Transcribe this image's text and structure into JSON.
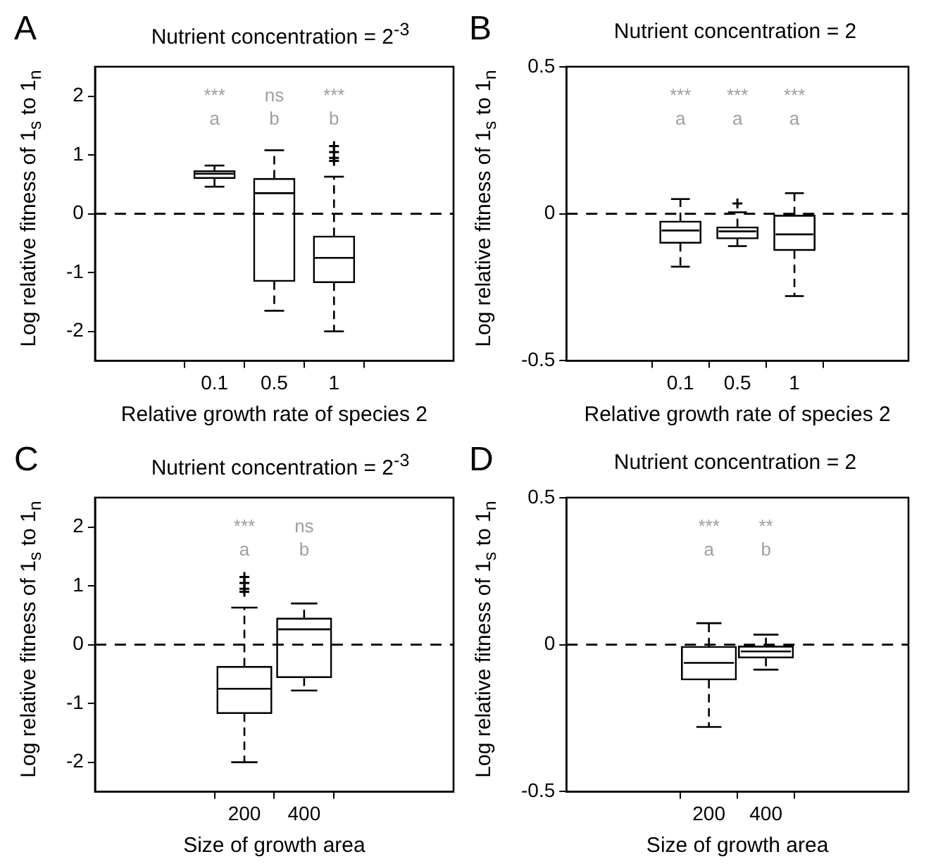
{
  "chart_data": [
    {
      "type": "box",
      "title": "Nutrient concentration = 2$^{-3}$",
      "xlabel": "Relative growth rate of species 2",
      "ylabel": "Log relative fitness of 1$_{s}$ to 1$_{n}$",
      "categories": [
        "0.1",
        "0.5",
        "1"
      ],
      "boxes": [
        {
          "low": 0.46,
          "q1": 0.6,
          "median": 0.68,
          "q3": 0.73,
          "high": 0.82
        },
        {
          "low": -1.65,
          "q1": -1.15,
          "median": 0.35,
          "q3": 0.6,
          "high": 1.08
        },
        {
          "low": -2.0,
          "q1": -1.17,
          "median": -0.75,
          "q3": -0.38,
          "high": 0.63,
          "outliers": [
            0.9,
            0.95,
            1.05,
            1.15
          ]
        }
      ],
      "ylim": [
        -2.5,
        2.5
      ],
      "yticks": [
        -2,
        -1,
        0,
        1,
        2
      ],
      "ref_lines": [
        {
          "axis": "y",
          "value": 0,
          "color": "#000000",
          "line_style": "dashed"
        }
      ],
      "annotations": [
        "A",
        "***",
        "a",
        "ns",
        "b",
        "***",
        "b"
      ]
    },
    {
      "type": "box",
      "title": "Nutrient concentration = 2",
      "xlabel": "Relative growth rate of species 2",
      "ylabel": "Log relative fitness of 1$_{s}$ to 1$_{n}$",
      "categories": [
        "0.1",
        "0.5",
        "1"
      ],
      "boxes": [
        {
          "low": -0.18,
          "q1": -0.1,
          "median": -0.057,
          "q3": -0.025,
          "high": 0.05
        },
        {
          "low": -0.11,
          "q1": -0.085,
          "median": -0.06,
          "q3": -0.045,
          "high": 0.005,
          "outliers": [
            0.035
          ]
        },
        {
          "low": -0.28,
          "q1": -0.125,
          "median": -0.07,
          "q3": -0.005,
          "high": 0.07
        }
      ],
      "ylim": [
        -0.5,
        0.5
      ],
      "yticks": [
        -0.5,
        0,
        0.5
      ],
      "ref_lines": [
        {
          "axis": "y",
          "value": 0,
          "color": "#000000",
          "line_style": "dashed"
        }
      ],
      "annotations": [
        "B",
        "***",
        "a",
        "***",
        "a",
        "***",
        "a"
      ]
    },
    {
      "type": "box",
      "title": "Nutrient concentration = 2$^{-3}$",
      "xlabel": "Size of growth area",
      "ylabel": "Log relative fitness of 1$_{s}$ to 1$_{n}$",
      "categories": [
        "200",
        "400"
      ],
      "boxes": [
        {
          "low": -2.0,
          "q1": -1.17,
          "median": -0.75,
          "q3": -0.37,
          "high": 0.63,
          "outliers": [
            0.9,
            0.95,
            1.05,
            1.15
          ]
        },
        {
          "low": -0.78,
          "q1": -0.56,
          "median": 0.26,
          "q3": 0.45,
          "high": 0.7
        }
      ],
      "ylim": [
        -2.5,
        2.5
      ],
      "yticks": [
        -2,
        -1,
        0,
        1,
        2
      ],
      "ref_lines": [
        {
          "axis": "y",
          "value": 0,
          "color": "#000000",
          "line_style": "dashed"
        }
      ],
      "annotations": [
        "C",
        "***",
        "a",
        "ns",
        "b"
      ]
    },
    {
      "type": "box",
      "title": "Nutrient concentration = 2",
      "xlabel": "Size of growth area",
      "ylabel": "Log relative fitness of 1$_{s}$ to 1$_{n}$",
      "categories": [
        "200",
        "400"
      ],
      "boxes": [
        {
          "low": -0.28,
          "q1": -0.12,
          "median": -0.062,
          "q3": -0.006,
          "high": 0.073
        },
        {
          "low": -0.085,
          "q1": -0.045,
          "median": -0.023,
          "q3": -0.005,
          "high": 0.034
        }
      ],
      "ylim": [
        -0.5,
        0.5
      ],
      "yticks": [
        -0.5,
        0,
        0.5
      ],
      "ref_lines": [
        {
          "axis": "y",
          "value": 0,
          "color": "#000000",
          "line_style": "dashed"
        }
      ],
      "annotations": [
        "D",
        "***",
        "a",
        "**",
        "b"
      ]
    }
  ]
}
